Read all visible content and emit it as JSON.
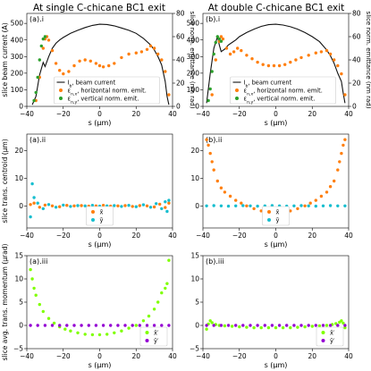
{
  "colors": {
    "current": "#111111",
    "emit_x": "#ff7f0e",
    "emit_y": "#2ca02c",
    "xbar": "#ff7f0e",
    "ybar": "#17becf",
    "xp": "#7fff00",
    "yp": "#9400d3"
  },
  "columns": [
    {
      "title": "At single C-chicane BC1 exit"
    },
    {
      "title": "At double C-chicane BC1 exit"
    }
  ],
  "chart_data": [
    {
      "type": "line",
      "panel": "(a).i",
      "xlabel": "s (μm)",
      "ylabel": "slice beam current (A)",
      "y2label": "slice norm. emittance (nm rad)",
      "xlim": [
        -40,
        40
      ],
      "ylim": [
        0,
        560
      ],
      "y2lim": [
        0,
        80
      ],
      "xticks": [
        -40,
        -20,
        0,
        20,
        40
      ],
      "yticks": [
        0,
        100,
        200,
        300,
        400,
        500
      ],
      "y2ticks": [
        0,
        20,
        40,
        60,
        80
      ],
      "legend": {
        "placement": "lower-center",
        "entries": [
          "I_b, beam current",
          "ε_{n,x}, horizontal norm. emit.",
          "ε_{n,y}, vertical norm. emit."
        ]
      },
      "series": [
        {
          "name": "I_b, beam current",
          "axis": "left",
          "style": "line",
          "color": "current",
          "x": [
            -37,
            -35,
            -33,
            -31,
            -30,
            -28,
            -26,
            -24,
            -22,
            -20,
            -16,
            -12,
            -8,
            -4,
            0,
            4,
            8,
            12,
            16,
            20,
            24,
            28,
            30,
            32,
            34,
            35,
            36,
            37,
            38
          ],
          "y": [
            10,
            60,
            190,
            265,
            240,
            300,
            350,
            380,
            400,
            415,
            440,
            458,
            475,
            488,
            495,
            493,
            485,
            472,
            458,
            440,
            410,
            370,
            340,
            300,
            250,
            200,
            150,
            60,
            10
          ]
        },
        {
          "name": "ε_{n,x}, horizontal norm. emit.",
          "axis": "right",
          "style": "points",
          "color": "emit_x",
          "x": [
            -35,
            -33,
            -31,
            -30,
            -29,
            -28,
            -26,
            -24,
            -22,
            -20,
            -17,
            -14,
            -11,
            -8,
            -5,
            -2,
            0,
            2,
            5,
            8,
            12,
            16,
            20,
            23,
            26,
            28,
            30,
            32,
            34,
            36,
            38
          ],
          "y": [
            5,
            25,
            50,
            58,
            60,
            57,
            48,
            37,
            31,
            28,
            30,
            35,
            39,
            40,
            39,
            37,
            35,
            34,
            35,
            37,
            42,
            45,
            46,
            47,
            49,
            52,
            50,
            45,
            40,
            30,
            10
          ]
        },
        {
          "name": "ε_{n,y}, vertical norm. emit.",
          "axis": "right",
          "style": "points",
          "color": "emit_y",
          "x": [
            -36,
            -35,
            -34,
            -33,
            -32,
            -31,
            -30
          ],
          "y": [
            5,
            12,
            25,
            40,
            52,
            58,
            60
          ]
        }
      ]
    },
    {
      "type": "line",
      "panel": "(b).i",
      "xlabel": "s (μm)",
      "ylabel": "",
      "y2label": "slice norm. emittance (nm rad)",
      "xlim": [
        -40,
        40
      ],
      "ylim": [
        0,
        560
      ],
      "y2lim": [
        0,
        80
      ],
      "xticks": [
        -40,
        -20,
        0,
        20,
        40
      ],
      "yticks": [
        0,
        100,
        200,
        300,
        400,
        500
      ],
      "y2ticks": [
        0,
        20,
        40,
        60,
        80
      ],
      "legend": {
        "placement": "lower-center",
        "entries": [
          "I_b, beam current",
          "ε_{n,x}, horizontal norm. emit.",
          "ε_{n,y}, vertical norm. emit."
        ]
      },
      "series": [
        {
          "name": "I_b, beam current",
          "axis": "left",
          "style": "line",
          "color": "current",
          "x": [
            -38,
            -36,
            -34,
            -32,
            -31,
            -30,
            -28,
            -26,
            -24,
            -22,
            -20,
            -16,
            -12,
            -8,
            -4,
            0,
            4,
            8,
            12,
            16,
            20,
            24,
            28,
            30,
            32,
            34,
            36,
            37,
            38
          ],
          "y": [
            20,
            200,
            350,
            420,
            370,
            330,
            345,
            370,
            385,
            400,
            420,
            445,
            465,
            482,
            492,
            495,
            490,
            480,
            465,
            445,
            420,
            390,
            340,
            305,
            260,
            200,
            150,
            80,
            20
          ]
        },
        {
          "name": "ε_{n,x}, horizontal norm. emit.",
          "axis": "right",
          "style": "points",
          "color": "emit_x",
          "x": [
            -35,
            -33,
            -31,
            -30,
            -29,
            -27,
            -25,
            -23,
            -21,
            -19,
            -16,
            -13,
            -10,
            -7,
            -4,
            -1,
            2,
            5,
            8,
            11,
            14,
            18,
            22,
            25,
            28,
            30,
            32,
            34,
            36,
            38
          ],
          "y": [
            10,
            40,
            56,
            60,
            58,
            50,
            45,
            47,
            50,
            48,
            44,
            41,
            38,
            36,
            35,
            35,
            35,
            36,
            38,
            40,
            42,
            44,
            46,
            47,
            48,
            45,
            40,
            35,
            28,
            10
          ]
        },
        {
          "name": "ε_{n,y}, vertical norm. emit.",
          "axis": "right",
          "style": "points",
          "color": "emit_y",
          "x": [
            -37,
            -36,
            -35,
            -34,
            -33,
            -32,
            -31,
            -30
          ],
          "y": [
            5,
            15,
            30,
            45,
            55,
            60,
            58,
            56
          ]
        }
      ]
    },
    {
      "type": "scatter",
      "panel": "(a).ii",
      "xlabel": "s (μm)",
      "ylabel": "slice trans. centroid (μm)",
      "xlim": [
        -40,
        40
      ],
      "ylim": [
        -8,
        26
      ],
      "xticks": [
        -40,
        -20,
        0,
        20,
        40
      ],
      "yticks": [
        0,
        10,
        20
      ],
      "legend": {
        "placement": "lower-center",
        "entries": [
          "x̄",
          "ȳ"
        ]
      },
      "series": [
        {
          "name": "x̄",
          "color": "xbar",
          "x": [
            -38,
            -36,
            -33,
            -30,
            -26,
            -22,
            -18,
            -14,
            -10,
            -6,
            -2,
            2,
            6,
            10,
            14,
            18,
            22,
            26,
            30,
            33,
            36,
            38
          ],
          "y": [
            0.5,
            1,
            -0.5,
            0.3,
            0,
            -0.3,
            0.2,
            0,
            0.1,
            -0.1,
            0,
            0.2,
            -0.1,
            0,
            0.1,
            -0.2,
            0.1,
            0,
            -0.4,
            0.6,
            -0.6,
            1
          ]
        },
        {
          "name": "ȳ",
          "color": "ybar",
          "x": [
            -38,
            -37,
            -36,
            -34,
            -31,
            -28,
            -24,
            -20,
            -16,
            -12,
            -8,
            -4,
            0,
            4,
            8,
            12,
            16,
            20,
            24,
            28,
            31,
            34,
            36,
            37,
            38
          ],
          "y": [
            -4,
            8,
            3,
            1,
            -1,
            0.5,
            -0.5,
            0.3,
            -0.2,
            0.1,
            0,
            0.2,
            -0.1,
            0,
            0.1,
            -0.2,
            0.2,
            -0.3,
            0.4,
            -0.5,
            0.8,
            -1,
            1.5,
            -2,
            2
          ]
        }
      ]
    },
    {
      "type": "scatter",
      "panel": "(b).ii",
      "xlabel": "s (μm)",
      "ylabel": "",
      "xlim": [
        -40,
        40
      ],
      "ylim": [
        -8,
        26
      ],
      "xticks": [
        -40,
        -20,
        0,
        20,
        40
      ],
      "yticks": [
        0,
        10,
        20
      ],
      "legend": {
        "placement": "lower-center",
        "entries": [
          "x̄",
          "ȳ"
        ]
      },
      "series": [
        {
          "name": "x̄",
          "color": "xbar",
          "x": [
            -38,
            -37,
            -36,
            -35,
            -34,
            -32,
            -30,
            -28,
            -25,
            -22,
            -19,
            -16,
            -12,
            -8,
            -4,
            0,
            4,
            8,
            12,
            16,
            19,
            22,
            25,
            28,
            30,
            32,
            34,
            35,
            36,
            37,
            38
          ],
          "y": [
            24,
            22,
            19,
            16,
            13,
            9,
            6.5,
            5,
            3.5,
            2,
            1,
            0,
            -1,
            -1.8,
            -2.2,
            -2.4,
            -2.2,
            -1.8,
            -1,
            0,
            1,
            2,
            3.5,
            5,
            7,
            9,
            13,
            16,
            19,
            22,
            24
          ]
        },
        {
          "name": "ȳ",
          "color": "ybar",
          "x": [
            -38,
            -34,
            -30,
            -26,
            -22,
            -18,
            -14,
            -10,
            -6,
            -2,
            2,
            6,
            10,
            14,
            18,
            22,
            26,
            30,
            34,
            38
          ],
          "y": [
            0,
            0.1,
            0,
            -0.1,
            0,
            0.1,
            0,
            -0.1,
            0,
            0.1,
            0,
            -0.1,
            0,
            0.1,
            0,
            -0.1,
            0,
            0.1,
            0,
            0
          ]
        }
      ]
    },
    {
      "type": "scatter",
      "panel": "(a).iii",
      "xlabel": "s (μm)",
      "ylabel": "slice avg. trans. momentum (μrad)",
      "xlim": [
        -40,
        40
      ],
      "ylim": [
        -5,
        15
      ],
      "xticks": [
        -40,
        -20,
        0,
        20,
        40
      ],
      "yticks": [
        -5,
        0,
        5,
        10,
        15
      ],
      "legend": {
        "placement": "lower-right",
        "entries": [
          "x̄′",
          "ȳ′"
        ]
      },
      "series": [
        {
          "name": "x̄′",
          "color": "xp",
          "x": [
            -38,
            -37,
            -36,
            -35,
            -33,
            -31,
            -28,
            -25,
            -22,
            -19,
            -16,
            -12,
            -8,
            -4,
            0,
            4,
            8,
            12,
            16,
            20,
            24,
            27,
            30,
            32,
            34,
            36,
            37,
            38
          ],
          "y": [
            12,
            10,
            8,
            6.5,
            4.5,
            3,
            1.5,
            0.5,
            -0.3,
            -0.8,
            -1.2,
            -1.6,
            -1.9,
            -2,
            -2,
            -1.9,
            -1.6,
            -1.2,
            -0.6,
            0,
            1,
            2,
            3.5,
            5,
            7,
            8,
            9,
            14
          ]
        },
        {
          "name": "ȳ′",
          "color": "yp",
          "x": [
            -38,
            -34,
            -30,
            -26,
            -22,
            -18,
            -14,
            -10,
            -6,
            -2,
            2,
            6,
            10,
            14,
            18,
            22,
            26,
            30,
            34,
            38
          ],
          "y": [
            0,
            0,
            0,
            0,
            0,
            0,
            0,
            0,
            0,
            0,
            0,
            0,
            0,
            0,
            0,
            0,
            0,
            0,
            0,
            0
          ]
        }
      ]
    },
    {
      "type": "scatter",
      "panel": "(b).iii",
      "xlabel": "s (μm)",
      "ylabel": "",
      "xlim": [
        -40,
        40
      ],
      "ylim": [
        -5,
        15
      ],
      "xticks": [
        -40,
        -20,
        0,
        20,
        40
      ],
      "yticks": [
        -5,
        0,
        5,
        10,
        15
      ],
      "legend": {
        "placement": "lower-right",
        "entries": [
          "x̄′",
          "ȳ′"
        ]
      },
      "series": [
        {
          "name": "x̄′",
          "color": "xp",
          "x": [
            -38,
            -37,
            -36,
            -35,
            -33,
            -31,
            -28,
            -24,
            -20,
            -16,
            -12,
            -8,
            -4,
            0,
            4,
            8,
            12,
            16,
            20,
            24,
            28,
            31,
            33,
            35,
            36,
            37,
            38
          ],
          "y": [
            -0.8,
            0.3,
            1,
            0.6,
            0.2,
            0,
            -0.1,
            -0.2,
            -0.3,
            -0.4,
            -0.5,
            -0.5,
            -0.5,
            -0.5,
            -0.5,
            -0.5,
            -0.4,
            -0.3,
            -0.2,
            -0.1,
            0,
            0.2,
            0.4,
            0.7,
            1,
            0.5,
            -0.5
          ]
        },
        {
          "name": "ȳ′",
          "color": "yp",
          "x": [
            -38,
            -34,
            -30,
            -26,
            -22,
            -18,
            -14,
            -10,
            -6,
            -2,
            2,
            6,
            10,
            14,
            18,
            22,
            26,
            30,
            34,
            38
          ],
          "y": [
            0,
            0,
            0,
            0,
            0,
            0,
            0,
            0,
            0,
            0,
            0,
            0,
            0,
            0,
            0,
            0,
            0,
            0,
            0,
            0
          ]
        }
      ]
    }
  ]
}
